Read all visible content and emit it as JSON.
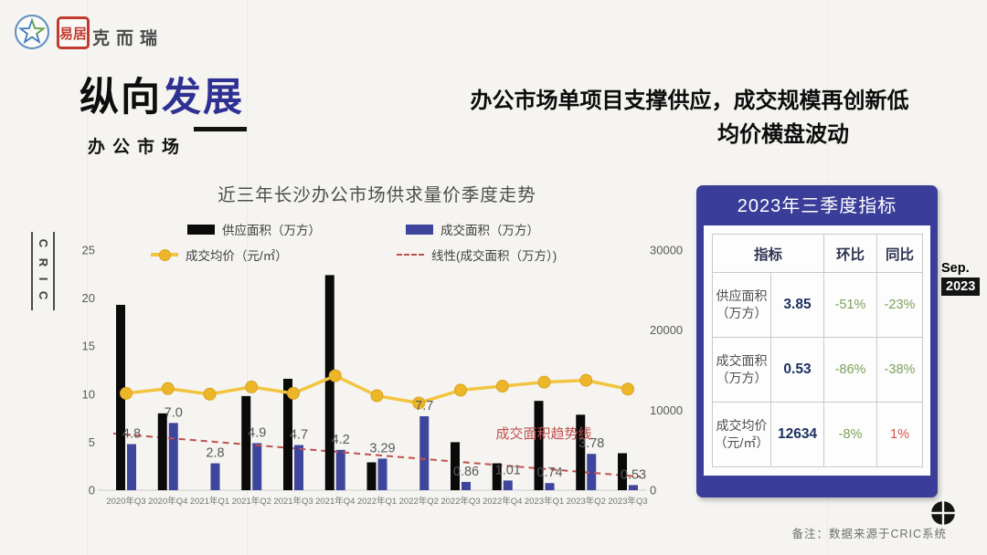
{
  "brand": {
    "logo_text": "克而瑞",
    "seal_text": "易居",
    "vertical_text": "C R I C"
  },
  "header": {
    "title_black": "纵向",
    "title_blue": "发展",
    "subtitle": "办公市场",
    "headline_line1": "办公市场单项目支撑供应，成交规模再创新低",
    "headline_line2": "均价横盘波动"
  },
  "chart_data": {
    "type": "bar+line",
    "title": "近三年长沙办公市场供求量价季度走势",
    "categories": [
      "2020年Q3",
      "2020年Q4",
      "2021年Q1",
      "2021年Q2",
      "2021年Q3",
      "2021年Q4",
      "2022年Q1",
      "2022年Q2",
      "2022年Q3",
      "2022年Q4",
      "2023年Q1",
      "2023年Q2",
      "2023年Q3"
    ],
    "series": [
      {
        "name": "供应面积（万方）",
        "type": "bar",
        "axis": "left",
        "color": "#0a0a0a",
        "values": [
          19.3,
          8.0,
          0,
          9.8,
          11.6,
          22.4,
          2.9,
          0,
          5.0,
          2.8,
          9.3,
          7.86,
          3.85
        ]
      },
      {
        "name": "成交面积（万方）",
        "type": "bar",
        "axis": "left",
        "color": "#3e459c",
        "values": [
          4.8,
          7.0,
          2.8,
          4.9,
          4.7,
          4.2,
          3.29,
          7.7,
          0.86,
          1.01,
          0.74,
          3.78,
          0.53
        ],
        "labels": [
          "4.8",
          "7.0",
          "2.8",
          "4.9",
          "4.7",
          "4.2",
          "3.29",
          "7.7",
          "0.86",
          "1.01",
          "0.74",
          "3.78",
          "0.53"
        ]
      },
      {
        "name": "成交均价（元/㎡）",
        "type": "line",
        "axis": "right",
        "color": "#f3c440",
        "marker_color": "#edb528",
        "values": [
          12100,
          12700,
          12000,
          12900,
          12100,
          14300,
          11800,
          10900,
          12500,
          13000,
          13500,
          13733,
          12634
        ]
      },
      {
        "name": "线性(成交面积（万方）)",
        "type": "trend",
        "axis": "left",
        "color": "#c0504d",
        "start": 5.9,
        "end": 1.4
      }
    ],
    "left_axis": {
      "min": 0,
      "max": 25,
      "ticks": [
        0,
        5,
        10,
        15,
        20,
        25
      ]
    },
    "right_axis": {
      "min": 0,
      "max": 30000,
      "ticks": [
        0,
        10000,
        20000,
        30000
      ]
    },
    "annotation": "成交面积趋势线",
    "grid": false,
    "legend_position": "top"
  },
  "panel": {
    "title": "2023年三季度指标",
    "columns": [
      "指标",
      "环比",
      "同比"
    ],
    "rows": [
      {
        "label": "供应面积",
        "unit": "（万方）",
        "value": "3.85",
        "mom": "-51%",
        "yoy": "-23%",
        "mom_color": "#7ba05a",
        "yoy_color": "#7ba05a"
      },
      {
        "label": "成交面积",
        "unit": "（万方）",
        "value": "0.53",
        "mom": "-86%",
        "yoy": "-38%",
        "mom_color": "#7ba05a",
        "yoy_color": "#7ba05a"
      },
      {
        "label": "成交均价",
        "unit": "（元/㎡）",
        "value": "12634",
        "mom": "-8%",
        "yoy": "1%",
        "mom_color": "#7ba05a",
        "yoy_color": "#dd4f45"
      }
    ],
    "badge_month": "Sep.",
    "badge_year": "2023"
  },
  "footer": {
    "note": "备注：数据来源于CRIC系统"
  },
  "colors": {
    "panel_indigo": "#3b3e99",
    "title_indigo": "#2e3192",
    "bar_black": "#0a0a0a",
    "bar_blue": "#3e459c",
    "line_yellow": "#f3c440",
    "trend_red": "#c0504d",
    "pct_green": "#7ba05a",
    "pct_red": "#dd4f45"
  }
}
